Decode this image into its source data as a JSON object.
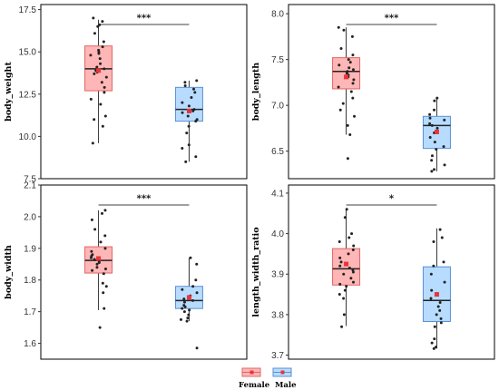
{
  "colors": {
    "female_fill": "#ffb6b6",
    "female_stroke": "#e06666",
    "male_fill": "#b7dcff",
    "male_stroke": "#5b8fd6",
    "mean_marker": "#e8343a",
    "points": "#222222",
    "panel_border": "#000000"
  },
  "legend": {
    "items": [
      "Female",
      "Male"
    ]
  },
  "chart_data": [
    {
      "type": "box",
      "ylabel": "body_weight",
      "ylim": [
        7.5,
        17.8
      ],
      "yticks": [
        "7.5",
        "10.0",
        "12.5",
        "15.0",
        "17.5"
      ],
      "ytick_values": [
        7.5,
        10.0,
        12.5,
        15.0,
        17.5
      ],
      "significance": "***",
      "series": [
        {
          "name": "Female",
          "q1": 12.7,
          "median": 14.0,
          "q3": 15.35,
          "whisker_low": 9.6,
          "whisker_high": 16.9,
          "mean": 13.9,
          "points": [
            17.0,
            16.8,
            16.6,
            16.5,
            16.1,
            15.6,
            15.3,
            15.1,
            15.0,
            14.9,
            14.8,
            14.6,
            14.3,
            14.1,
            14.0,
            13.9,
            13.8,
            13.7,
            13.5,
            13.2,
            12.9,
            12.6,
            12.2,
            11.9,
            11.2,
            11.0,
            10.6,
            9.6
          ]
        },
        {
          "name": "Male",
          "q1": 10.9,
          "median": 11.6,
          "q3": 12.9,
          "whisker_low": 8.5,
          "whisker_high": 13.3,
          "mean": 11.5,
          "points": [
            13.3,
            13.2,
            13.0,
            12.8,
            12.6,
            12.3,
            12.0,
            11.8,
            11.6,
            11.5,
            11.4,
            11.2,
            11.0,
            10.9,
            10.6,
            10.2,
            9.5,
            9.3,
            8.8,
            8.5
          ]
        }
      ]
    },
    {
      "type": "box",
      "ylabel": "body_length",
      "ylim": [
        6.2,
        8.1
      ],
      "yticks": [
        "6.5",
        "7.0",
        "7.5",
        "8.0"
      ],
      "ytick_values": [
        6.5,
        7.0,
        7.5,
        8.0
      ],
      "significance": "***",
      "series": [
        {
          "name": "Female",
          "q1": 7.18,
          "median": 7.37,
          "q3": 7.52,
          "whisker_low": 6.68,
          "whisker_high": 7.85,
          "mean": 7.31,
          "points": [
            7.85,
            7.82,
            7.75,
            7.62,
            7.55,
            7.5,
            7.47,
            7.44,
            7.41,
            7.39,
            7.37,
            7.35,
            7.33,
            7.31,
            7.28,
            7.24,
            7.2,
            7.15,
            7.08,
            7.02,
            6.95,
            6.88,
            6.78,
            6.68,
            6.42
          ]
        },
        {
          "name": "Male",
          "q1": 6.53,
          "median": 6.78,
          "q3": 6.88,
          "whisker_low": 6.28,
          "whisker_high": 7.08,
          "mean": 6.71,
          "points": [
            7.08,
            7.05,
            6.95,
            6.9,
            6.86,
            6.84,
            6.8,
            6.78,
            6.75,
            6.72,
            6.7,
            6.65,
            6.6,
            6.55,
            6.52,
            6.45,
            6.4,
            6.35,
            6.3,
            6.28
          ]
        }
      ]
    },
    {
      "type": "box",
      "ylabel": "body_width",
      "ylim": [
        1.55,
        2.1
      ],
      "yticks": [
        "1.6",
        "1.7",
        "1.8",
        "1.9",
        "2.0",
        "2.1"
      ],
      "ytick_values": [
        1.6,
        1.7,
        1.8,
        1.9,
        2.0,
        2.1
      ],
      "significance": "***",
      "series": [
        {
          "name": "Female",
          "q1": 1.822,
          "median": 1.862,
          "q3": 1.905,
          "whisker_low": 1.705,
          "whisker_high": 2.02,
          "mean": 1.868,
          "points": [
            2.02,
            2.01,
            1.99,
            1.96,
            1.94,
            1.92,
            1.9,
            1.89,
            1.88,
            1.875,
            1.87,
            1.865,
            1.86,
            1.855,
            1.85,
            1.84,
            1.835,
            1.83,
            1.82,
            1.79,
            1.78,
            1.76,
            1.71,
            1.65
          ]
        },
        {
          "name": "Male",
          "q1": 1.71,
          "median": 1.735,
          "q3": 1.78,
          "whisker_low": 1.67,
          "whisker_high": 1.87,
          "mean": 1.745,
          "points": [
            1.87,
            1.85,
            1.8,
            1.78,
            1.77,
            1.76,
            1.75,
            1.74,
            1.735,
            1.73,
            1.72,
            1.715,
            1.71,
            1.705,
            1.7,
            1.69,
            1.68,
            1.675,
            1.67,
            1.585
          ]
        }
      ]
    },
    {
      "type": "box",
      "ylabel": "length_width_ratio",
      "ylim": [
        3.69,
        4.12
      ],
      "yticks": [
        "3.7",
        "3.8",
        "3.9",
        "4.0",
        "4.1"
      ],
      "ytick_values": [
        3.7,
        3.8,
        3.9,
        4.0,
        4.1
      ],
      "significance": "*",
      "series": [
        {
          "name": "Female",
          "q1": 3.873,
          "median": 3.913,
          "q3": 3.963,
          "whisker_low": 3.772,
          "whisker_high": 4.06,
          "mean": 3.925,
          "points": [
            4.06,
            4.04,
            4.0,
            3.99,
            3.98,
            3.97,
            3.96,
            3.95,
            3.94,
            3.93,
            3.92,
            3.915,
            3.91,
            3.905,
            3.9,
            3.89,
            3.88,
            3.875,
            3.87,
            3.86,
            3.85,
            3.84,
            3.8,
            3.77
          ]
        },
        {
          "name": "Male",
          "q1": 3.783,
          "median": 3.835,
          "q3": 3.918,
          "whisker_low": 3.716,
          "whisker_high": 4.013,
          "mean": 3.85,
          "points": [
            4.01,
            3.99,
            3.98,
            3.93,
            3.92,
            3.9,
            3.88,
            3.86,
            3.84,
            3.83,
            3.82,
            3.81,
            3.8,
            3.79,
            3.78,
            3.77,
            3.74,
            3.73,
            3.72,
            3.716
          ]
        }
      ]
    }
  ]
}
